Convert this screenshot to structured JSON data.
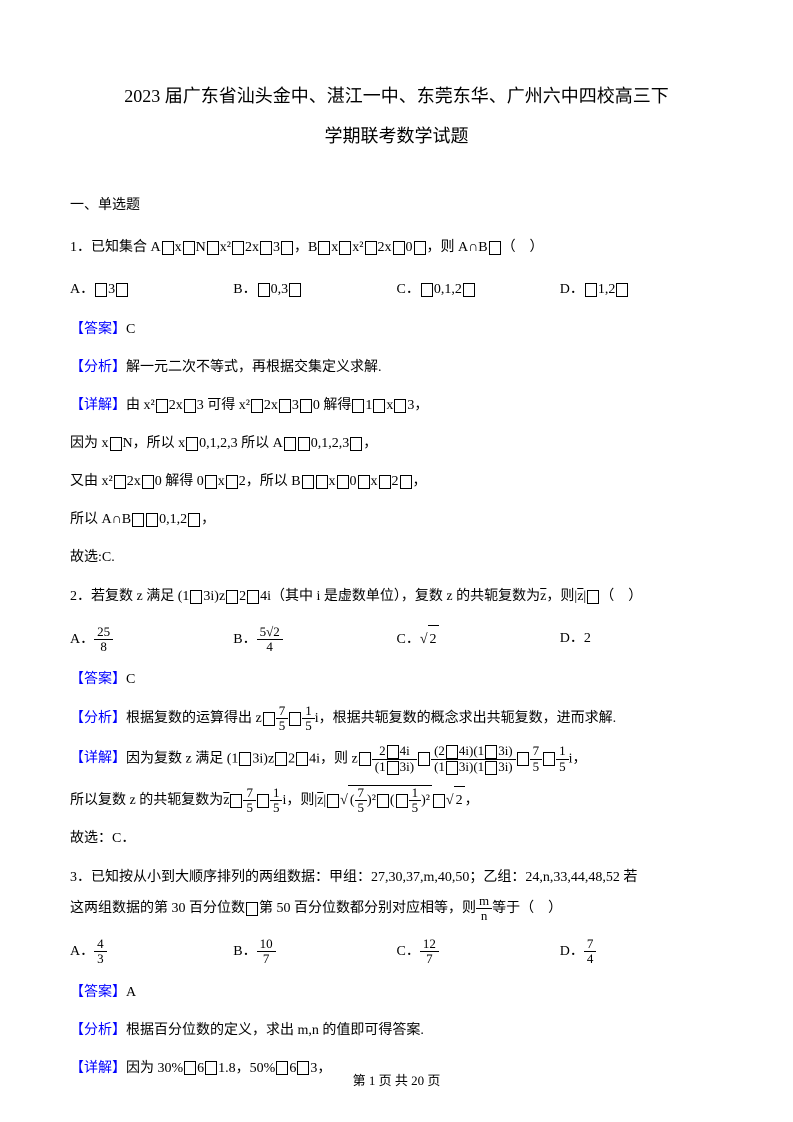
{
  "title": {
    "line1": "2023 届广东省汕头金中、湛江一中、东莞东华、广州六中四校高三下",
    "line2": "学期联考数学试题"
  },
  "section1": {
    "header": "一、单选题"
  },
  "q1": {
    "stem_prefix": "1．已知集合 A",
    "stem_mid1": "x",
    "stem_mid2": "N",
    "stem_mid3": "x²",
    "stem_mid4": "2x",
    "stem_mid5": "3",
    "stem_mid6": "，B",
    "stem_mid7": "x",
    "stem_mid8": "x²",
    "stem_mid9": "2x",
    "stem_mid10": "0",
    "stem_suffix": "，则 A∩B",
    "stem_paren": "（　）",
    "optA_label": "A．",
    "optA_val": "3",
    "optB_label": "B．",
    "optB_val": "0,3",
    "optC_label": "C．",
    "optC_val": "0,1,2",
    "optD_label": "D．",
    "optD_val": "1,2",
    "answer_label": "【答案】",
    "answer_val": "C",
    "analysis_label": "【分析】",
    "analysis_text": "解一元二次不等式，再根据交集定义求解.",
    "detail_label": "【详解】",
    "detail_line1_p1": "由 x²",
    "detail_line1_p2": "2x",
    "detail_line1_p3": "3 可得 x²",
    "detail_line1_p4": "2x",
    "detail_line1_p5": "3",
    "detail_line1_p6": "0 解得",
    "detail_line1_p7": "1",
    "detail_line1_p8": "x",
    "detail_line1_p9": "3，",
    "detail_line2_p1": "因为 x",
    "detail_line2_p2": "N，所以 x",
    "detail_line2_p3": "0,1,2,3 所以 A",
    "detail_line2_p4": "0,1,2,3",
    "detail_line2_p5": "，",
    "detail_line3_p1": "又由 x²",
    "detail_line3_p2": "2x",
    "detail_line3_p3": "0 解得 0",
    "detail_line3_p4": "x",
    "detail_line3_p5": "2，所以 B",
    "detail_line3_p6": "x",
    "detail_line3_p7": "0",
    "detail_line3_p8": "x",
    "detail_line3_p9": "2",
    "detail_line3_p10": "，",
    "detail_line4_p1": "所以 A∩B",
    "detail_line4_p2": "0,1,2",
    "detail_line4_p3": "，",
    "detail_line5": "故选:C."
  },
  "q2": {
    "stem_p1": "2．若复数 z 满足 (1",
    "stem_p2": "3i)z",
    "stem_p3": "2",
    "stem_p4": "4i（其中 i 是虚数单位），复数 z 的共轭复数为",
    "stem_p5": "z",
    "stem_p6": "，则",
    "stem_p7": "z",
    "stem_p8": "（　）",
    "optA_label": "A．",
    "optA_num": "25",
    "optA_den": "8",
    "optB_label": "B．",
    "optB_num": "5√2",
    "optB_den": "4",
    "optC_label": "C．",
    "optC_val": "2",
    "optD_label": "D．",
    "optD_val": "2",
    "answer_label": "【答案】",
    "answer_val": "C",
    "analysis_label": "【分析】",
    "analysis_p1": "根据复数的运算得出 z",
    "analysis_num1": "7",
    "analysis_den1": "5",
    "analysis_num2": "1",
    "analysis_den2": "5",
    "analysis_p2": "i，根据共轭复数的概念求出共轭复数，进而求解.",
    "detail_label": "【详解】",
    "detail_p1": "因为复数 z 满足 (1",
    "detail_p2": "3i)z",
    "detail_p3": "2",
    "detail_p4": "4i，则 z",
    "detail_frac1_num": "2",
    "detail_frac1_num2": "4i",
    "detail_frac1_den": "(1",
    "detail_frac1_den2": "3i)",
    "detail_frac2_num": "(2",
    "detail_frac2_num2": "4i)(1",
    "detail_frac2_num3": "3i)",
    "detail_frac2_den": "(1",
    "detail_frac2_den2": "3i)(1",
    "detail_frac2_den3": "3i)",
    "detail_num3": "7",
    "detail_den3": "5",
    "detail_num4": "1",
    "detail_den4": "5",
    "detail_suffix": "，",
    "detail2_p1": "所以复数 z 的共轭复数为",
    "detail2_p2": "z",
    "detail2_num1": "7",
    "detail2_den1": "5",
    "detail2_num2": "1",
    "detail2_den2": "5",
    "detail2_p3": "i，则",
    "detail2_p4": "z",
    "detail2_num3": "7",
    "detail2_den3": "5",
    "detail2_p5": ")²",
    "detail2_num4": "1",
    "detail2_den4": "5",
    "detail2_p6": ")²",
    "detail2_p7": "2",
    "detail2_p8": "，",
    "detail3": "故选：C．"
  },
  "q3": {
    "stem_p1": "3．已知按从小到大顺序排列的两组数据：甲组：27,30,37,m,40,50；乙组：24,n,33,44,48,52 若",
    "stem_p2": "这两组数据的第 30 百分位数",
    "stem_p3": "第 50 百分位数都分别对应相等，则",
    "stem_frac_num": "m",
    "stem_frac_den": "n",
    "stem_p4": "等于（　）",
    "optA_label": "A．",
    "optA_num": "4",
    "optA_den": "3",
    "optB_label": "B．",
    "optB_num": "10",
    "optB_den": "7",
    "optC_label": "C．",
    "optC_num": "12",
    "optC_den": "7",
    "optD_label": "D．",
    "optD_num": "7",
    "optD_den": "4",
    "answer_label": "【答案】",
    "answer_val": "A",
    "analysis_label": "【分析】",
    "analysis_text": "根据百分位数的定义，求出 m,n 的值即可得答案.",
    "detail_label": "【详解】",
    "detail_p1": "因为 30%",
    "detail_p2": "6",
    "detail_p3": "1.8，50%",
    "detail_p4": "6",
    "detail_p5": "3，"
  },
  "footer": {
    "text": "第 1 页 共 20 页"
  },
  "colors": {
    "text": "#000000",
    "label": "#0000FF",
    "background": "#ffffff"
  },
  "fonts": {
    "body_size": 14,
    "title_size": 18,
    "family": "SimSun"
  }
}
